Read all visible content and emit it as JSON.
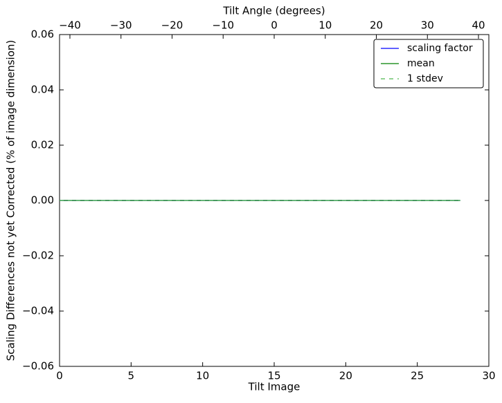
{
  "chart_data": {
    "type": "line",
    "x_label": "Tilt Image",
    "x2_label": "Tilt Angle (degrees)",
    "y_label": "Scaling Differences not yet Corrected (% of image dimension)",
    "x": [
      0,
      1,
      2,
      3,
      4,
      5,
      6,
      7,
      8,
      9,
      10,
      11,
      12,
      13,
      14,
      15,
      16,
      17,
      18,
      19,
      20,
      21,
      22,
      23,
      24,
      25,
      26,
      27,
      28
    ],
    "series": [
      {
        "name": "scaling factor",
        "color": "#0000ff",
        "dash": false,
        "values": [
          0,
          0,
          0,
          0,
          0,
          0,
          0,
          0,
          0,
          0,
          0,
          0,
          0,
          0,
          0,
          0,
          0,
          0,
          0,
          0,
          0,
          0,
          0,
          0,
          0,
          0,
          0,
          0,
          0
        ]
      },
      {
        "name": "mean",
        "color": "#008000",
        "dash": false,
        "values": [
          0,
          0,
          0,
          0,
          0,
          0,
          0,
          0,
          0,
          0,
          0,
          0,
          0,
          0,
          0,
          0,
          0,
          0,
          0,
          0,
          0,
          0,
          0,
          0,
          0,
          0,
          0,
          0,
          0
        ]
      },
      {
        "name": "1 stdev",
        "color": "#4cb84c",
        "dash": true,
        "values": [
          0,
          0,
          0,
          0,
          0,
          0,
          0,
          0,
          0,
          0,
          0,
          0,
          0,
          0,
          0,
          0,
          0,
          0,
          0,
          0,
          0,
          0,
          0,
          0,
          0,
          0,
          0,
          0,
          0
        ]
      }
    ],
    "xlim": [
      0,
      30
    ],
    "xticks": [
      0,
      5,
      10,
      15,
      20,
      25,
      30
    ],
    "x2lim": [
      -42.03,
      42.03
    ],
    "x2ticks": [
      {
        "value": -40,
        "label": "−40"
      },
      {
        "value": -30,
        "label": "−30"
      },
      {
        "value": -20,
        "label": "−20"
      },
      {
        "value": -10,
        "label": "−10"
      },
      0,
      10,
      20,
      30,
      40
    ],
    "ylim": [
      -0.06,
      0.06
    ],
    "yticks": [
      {
        "value": -0.06,
        "label": "−0.06"
      },
      {
        "value": -0.04,
        "label": "−0.04"
      },
      {
        "value": -0.02,
        "label": "−0.02"
      },
      {
        "value": 0,
        "label": "0.00"
      },
      0.02,
      0.04,
      0.06
    ],
    "legend": "upper right",
    "grid": false
  }
}
